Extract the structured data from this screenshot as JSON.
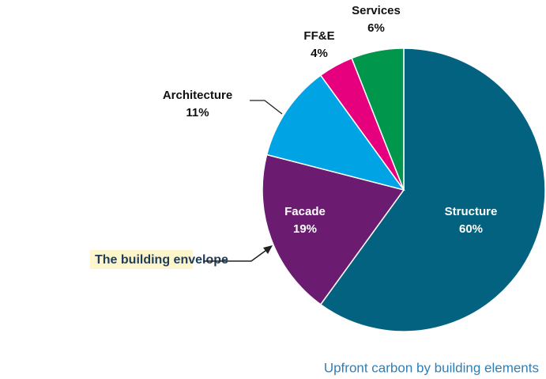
{
  "chart_data": {
    "type": "pie",
    "categories": [
      "Structure",
      "Facade",
      "Architecture",
      "FF&E",
      "Services"
    ],
    "values": [
      60,
      19,
      11,
      4,
      6
    ],
    "value_labels": [
      "60%",
      "19%",
      "11%",
      "4%",
      "6%"
    ],
    "colors": [
      "#03627f",
      "#6b1c71",
      "#00a4e4",
      "#e6007e",
      "#00964c"
    ],
    "annotation": "The building envelope",
    "caption": "Upfront carbon by building elements"
  }
}
